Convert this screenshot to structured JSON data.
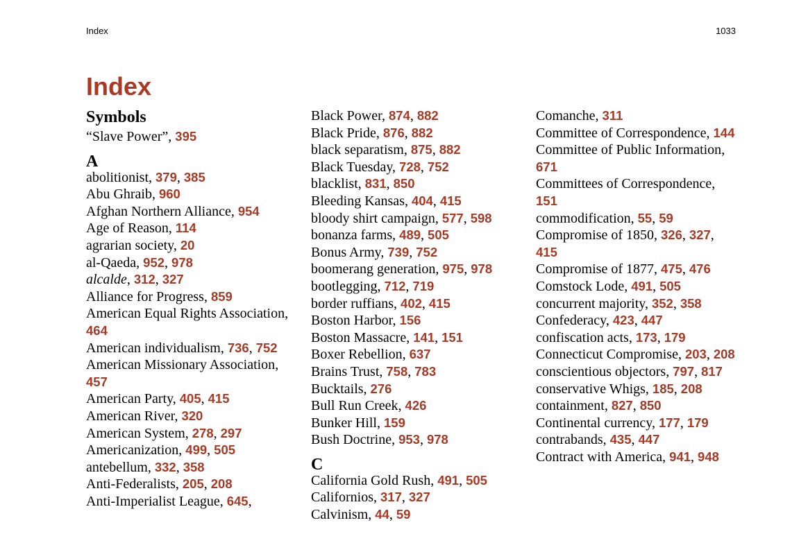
{
  "header": {
    "left": "Index",
    "right": "1033"
  },
  "title": "Index",
  "columns": [
    {
      "groups": [
        {
          "heading": "Symbols",
          "entries": [
            {
              "term": "“Slave Power”",
              "pages": [
                "395"
              ]
            }
          ]
        },
        {
          "heading": "A",
          "entries": [
            {
              "term": "abolitionist",
              "pages": [
                "379",
                "385"
              ]
            },
            {
              "term": "Abu Ghraib",
              "pages": [
                "960"
              ]
            },
            {
              "term": "Afghan Northern Alliance",
              "pages": [
                "954"
              ]
            },
            {
              "term": "Age of Reason",
              "pages": [
                "114"
              ]
            },
            {
              "term": "agrarian society",
              "pages": [
                "20"
              ]
            },
            {
              "term": "al-Qaeda",
              "pages": [
                "952",
                "978"
              ]
            },
            {
              "term": "alcalde",
              "italic": true,
              "pages": [
                "312",
                "327"
              ]
            },
            {
              "term": "Alliance for Progress",
              "pages": [
                "859"
              ]
            },
            {
              "term": "American Equal Rights Association",
              "pages": [
                "464"
              ]
            },
            {
              "term": "American individualism",
              "pages": [
                "736",
                "752"
              ]
            },
            {
              "term": "American Missionary Association",
              "pages": [
                "457"
              ]
            },
            {
              "term": "American Party",
              "pages": [
                "405",
                "415"
              ]
            },
            {
              "term": "American River",
              "pages": [
                "320"
              ]
            },
            {
              "term": "American System",
              "pages": [
                "278",
                "297"
              ]
            },
            {
              "term": "Americanization",
              "pages": [
                "499",
                "505"
              ]
            },
            {
              "term": "antebellum",
              "pages": [
                "332",
                "358"
              ]
            },
            {
              "term": "Anti-Federalists",
              "pages": [
                "205",
                "208"
              ]
            },
            {
              "term": "Anti-Imperialist League",
              "pages": [
                "645",
                ""
              ]
            }
          ]
        }
      ]
    },
    {
      "groups": [
        {
          "heading": "",
          "entries": [
            {
              "term": "Black Power",
              "pages": [
                "874",
                "882"
              ]
            },
            {
              "term": "Black Pride",
              "pages": [
                "876",
                "882"
              ]
            },
            {
              "term": "black separatism",
              "pages": [
                "875",
                "882"
              ]
            },
            {
              "term": "Black Tuesday",
              "pages": [
                "728",
                "752"
              ]
            },
            {
              "term": "blacklist",
              "pages": [
                "831",
                "850"
              ]
            },
            {
              "term": "Bleeding Kansas",
              "pages": [
                "404",
                "415"
              ]
            },
            {
              "term": "bloody shirt campaign",
              "pages": [
                "577",
                "598"
              ]
            },
            {
              "term": "bonanza farms",
              "pages": [
                "489",
                "505"
              ]
            },
            {
              "term": "Bonus Army",
              "pages": [
                "739",
                "752"
              ]
            },
            {
              "term": "boomerang generation",
              "pages": [
                "975",
                "978"
              ]
            },
            {
              "term": "bootlegging",
              "pages": [
                "712",
                "719"
              ]
            },
            {
              "term": "border ruffians",
              "pages": [
                "402",
                "415"
              ]
            },
            {
              "term": "Boston Harbor",
              "pages": [
                "156"
              ]
            },
            {
              "term": "Boston Massacre",
              "pages": [
                "141",
                "151"
              ]
            },
            {
              "term": "Boxer Rebellion",
              "pages": [
                "637"
              ]
            },
            {
              "term": "Brains Trust",
              "pages": [
                "758",
                "783"
              ]
            },
            {
              "term": "Bucktails",
              "pages": [
                "276"
              ]
            },
            {
              "term": "Bull Run Creek",
              "pages": [
                "426"
              ]
            },
            {
              "term": "Bunker Hill",
              "pages": [
                "159"
              ]
            },
            {
              "term": "Bush Doctrine",
              "pages": [
                "953",
                "978"
              ]
            }
          ]
        },
        {
          "heading": "C",
          "entries": [
            {
              "term": "California Gold Rush",
              "pages": [
                "491",
                "505"
              ]
            },
            {
              "term": "Californios",
              "pages": [
                "317",
                "327"
              ]
            },
            {
              "term": "Calvinism",
              "pages": [
                "44",
                "59"
              ]
            }
          ]
        }
      ]
    },
    {
      "groups": [
        {
          "heading": "",
          "entries": [
            {
              "term": "Comanche",
              "pages": [
                "311"
              ]
            },
            {
              "term": "Committee of Correspondence",
              "pages": [
                "144"
              ]
            },
            {
              "term": "Committee of Public Information",
              "pages": [
                "671"
              ]
            },
            {
              "term": "Committees of Correspondence",
              "pages": [
                "151"
              ]
            },
            {
              "term": "commodification",
              "pages": [
                "55",
                "59"
              ]
            },
            {
              "term": "Compromise of 1850",
              "pages": [
                "326",
                "327",
                "415"
              ]
            },
            {
              "term": "Compromise of 1877",
              "pages": [
                "475",
                "476"
              ]
            },
            {
              "term": "Comstock Lode",
              "pages": [
                "491",
                "505"
              ]
            },
            {
              "term": "concurrent majority",
              "pages": [
                "352",
                "358"
              ]
            },
            {
              "term": "Confederacy",
              "pages": [
                "423",
                "447"
              ]
            },
            {
              "term": "confiscation acts",
              "pages": [
                "173",
                "179"
              ]
            },
            {
              "term": "Connecticut Compromise",
              "pages": [
                "203",
                "208"
              ]
            },
            {
              "term": "conscientious objectors",
              "pages": [
                "797",
                "817"
              ]
            },
            {
              "term": "conservative Whigs",
              "pages": [
                "185",
                "208"
              ]
            },
            {
              "term": "containment",
              "pages": [
                "827",
                "850"
              ]
            },
            {
              "term": "Continental currency",
              "pages": [
                "177",
                "179"
              ]
            },
            {
              "term": "contrabands",
              "pages": [
                "435",
                "447"
              ]
            },
            {
              "term": "Contract with America",
              "pages": [
                "941",
                "948"
              ]
            }
          ]
        }
      ]
    }
  ],
  "colors": {
    "accent": "#a83a25",
    "text": "#000000"
  }
}
